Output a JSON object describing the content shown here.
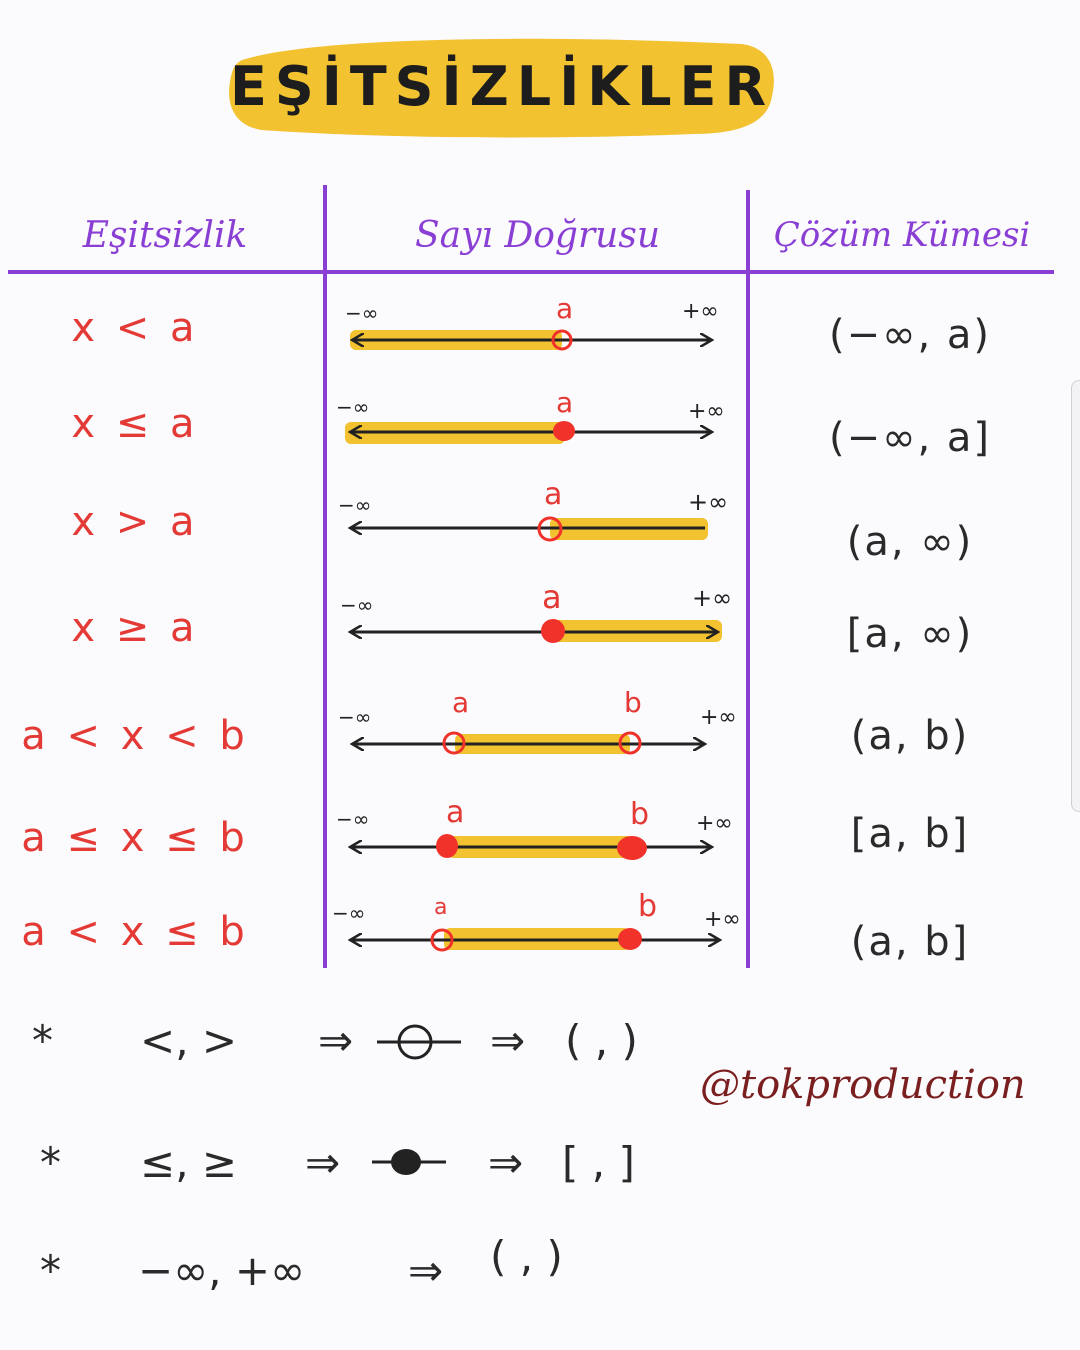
{
  "title": "EŞİTSİZLİKLER",
  "colors": {
    "highlight": "#f2c230",
    "header": "#8a3fd4",
    "inequality": "#e33a35",
    "point": "#f0322a",
    "ink": "#222222",
    "handle": "#7a1f1f"
  },
  "headers": {
    "inequality": "Eşitsizlik",
    "number_line": "Sayı Doğrusu",
    "solution_set": "Çözüm Kümesi"
  },
  "rows": [
    {
      "inequality": "x < a",
      "solution": "(−∞, a)",
      "neg_inf": "−∞",
      "pos_inf": "+∞",
      "label_a": "a",
      "label_b": ""
    },
    {
      "inequality": "x ≤ a",
      "solution": "(−∞, a]",
      "neg_inf": "−∞",
      "pos_inf": "+∞",
      "label_a": "a",
      "label_b": ""
    },
    {
      "inequality": "x > a",
      "solution": "(a, ∞)",
      "neg_inf": "−∞",
      "pos_inf": "+∞",
      "label_a": "a",
      "label_b": ""
    },
    {
      "inequality": "x ≥ a",
      "solution": "[a, ∞)",
      "neg_inf": "−∞",
      "pos_inf": "+∞",
      "label_a": "a",
      "label_b": ""
    },
    {
      "inequality": "a < x < b",
      "solution": "(a, b)",
      "neg_inf": "−∞",
      "pos_inf": "+∞",
      "label_a": "a",
      "label_b": "b"
    },
    {
      "inequality": "a ≤ x ≤ b",
      "solution": "[a, b]",
      "neg_inf": "−∞",
      "pos_inf": "+∞",
      "label_a": "a",
      "label_b": "b"
    },
    {
      "inequality": "a < x ≤ b",
      "solution": "(a, b]",
      "neg_inf": "−∞",
      "pos_inf": "+∞",
      "label_a": "a",
      "label_b": "b"
    }
  ],
  "notes": [
    {
      "star": "*",
      "symbols": "<, >",
      "arrow1": "⇒",
      "arrow2": "⇒",
      "result": "( , )",
      "marker": "open-circle"
    },
    {
      "star": "*",
      "symbols": "≤, ≥",
      "arrow1": "⇒",
      "arrow2": "⇒",
      "result": "[ , ]",
      "marker": "filled-circle"
    },
    {
      "star": "*",
      "symbols": "−∞, +∞",
      "arrow1": "⇒",
      "arrow2": "",
      "result": "( , )",
      "marker": "none"
    }
  ],
  "handle": "@tokproduction"
}
